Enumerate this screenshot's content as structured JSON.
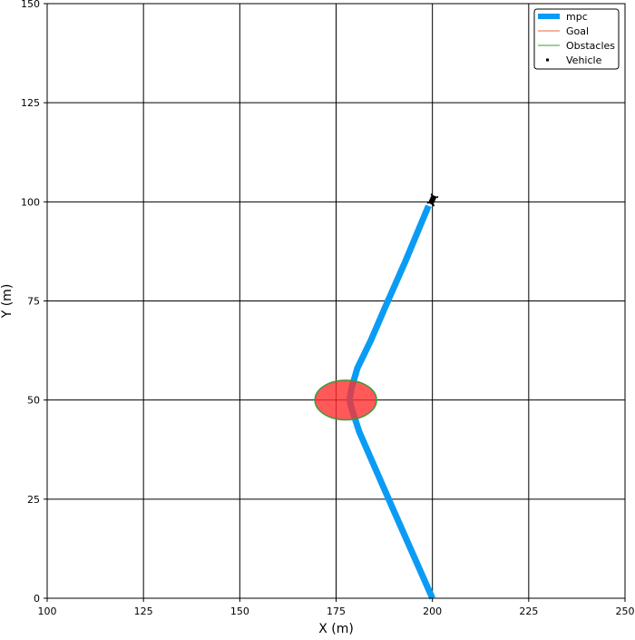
{
  "chart_data": {
    "type": "line",
    "title": "",
    "xlabel": "X (m)",
    "ylabel": "Y (m)",
    "xlim": [
      100,
      250
    ],
    "ylim": [
      0,
      150
    ],
    "xticks": [
      100,
      125,
      150,
      175,
      200,
      225,
      250
    ],
    "yticks": [
      0,
      25,
      50,
      75,
      100,
      125,
      150
    ],
    "grid": true,
    "legend_position": "top-right",
    "legend": [
      {
        "label": "mpc",
        "color": "#0a9cf5",
        "style": "thick-line"
      },
      {
        "label": "Goal",
        "color": "#e06a3a",
        "style": "line"
      },
      {
        "label": "Obstacles",
        "color": "#3c9a3c",
        "style": "line"
      },
      {
        "label": "Vehicle",
        "color": "#000000",
        "style": "marker"
      }
    ],
    "series": [
      {
        "name": "mpc",
        "color": "#0a9cf5",
        "points": [
          {
            "x": 200,
            "y": 0
          },
          {
            "x": 190,
            "y": 22
          },
          {
            "x": 181,
            "y": 42
          },
          {
            "x": 179,
            "y": 48
          },
          {
            "x": 178.5,
            "y": 50
          },
          {
            "x": 179,
            "y": 53
          },
          {
            "x": 180.5,
            "y": 58
          },
          {
            "x": 184,
            "y": 65
          },
          {
            "x": 188,
            "y": 74
          },
          {
            "x": 193,
            "y": 85
          },
          {
            "x": 199,
            "y": 99
          }
        ]
      }
    ],
    "obstacles": [
      {
        "cx": 177.5,
        "cy": 50,
        "rx": 8,
        "ry": 5,
        "fill": "#ff3030",
        "edge": "#3c9a3c"
      }
    ],
    "vehicle": {
      "x": 200,
      "y": 100.5,
      "heading_deg": 66,
      "color": "#000000"
    }
  }
}
